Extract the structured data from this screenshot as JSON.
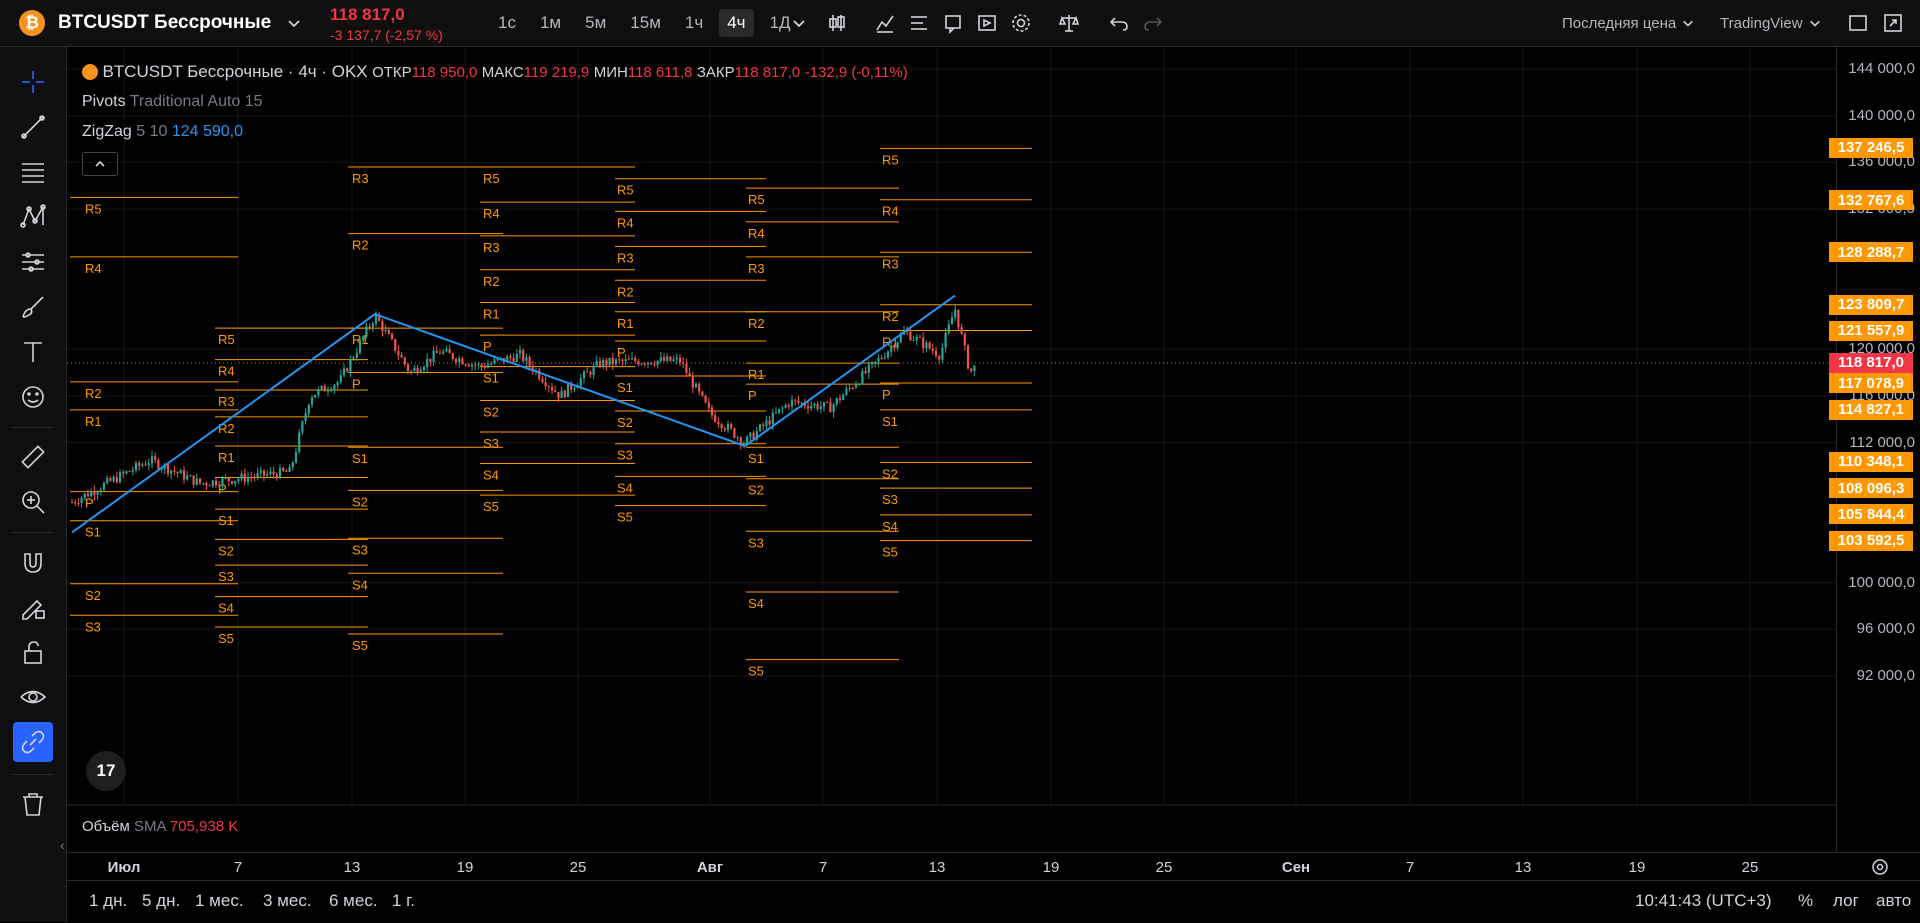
{
  "header": {
    "coin_glyph": "₿",
    "symbol_title": "BTCUSDT Бессрочные",
    "price": "118 817,0",
    "change": "-3 137,7 (-2,57 %)",
    "timeframes": [
      "1с",
      "1м",
      "5м",
      "15м",
      "1ч",
      "4ч",
      "1Д"
    ],
    "active_timeframe": "4ч",
    "price_type": "Последняя цена",
    "source": "TradingView"
  },
  "legend": {
    "title": "BTCUSDT Бессрочные · 4ч · OKX",
    "open_label": "ОТКР",
    "open": "118 950,0",
    "high_label": "МАКС",
    "high": "119 219,9",
    "low_label": "МИН",
    "low": "118 611,8",
    "close_label": "ЗАКР",
    "close": "118 817,0",
    "delta": "-132,9 (-0,11%)",
    "pivots_name": "Pivots",
    "pivots_params": "Traditional Auto 15",
    "zigzag_name": "ZigZag",
    "zigzag_params": "5 10",
    "zigzag_value": "124 590,0"
  },
  "volume": {
    "name": "Объём",
    "ma": "SMA",
    "value": "705,938 K"
  },
  "price_axis": {
    "labels": [
      "144 000,0",
      "140 000,0",
      "136 000,0",
      "132 000,0",
      "120 000,0",
      "116 000,0",
      "112 000,0",
      "100 000,0",
      "96 000,0",
      "92 000,0"
    ],
    "badges": [
      {
        "text": "137 246,5",
        "kind": "orange",
        "price": 137246.5
      },
      {
        "text": "132 767,6",
        "kind": "orange",
        "price": 132767.6
      },
      {
        "text": "128 288,7",
        "kind": "orange",
        "price": 128288.7
      },
      {
        "text": "123 809,7",
        "kind": "orange",
        "price": 123809.7
      },
      {
        "text": "121 557,9",
        "kind": "orange",
        "price": 121557.9
      },
      {
        "text": "118 817,0",
        "kind": "red",
        "price": 118817.0
      },
      {
        "text": "117 078,9",
        "kind": "orange",
        "price": 117078.9
      },
      {
        "text": "114 827,1",
        "kind": "orange",
        "price": 114827.1
      },
      {
        "text": "110 348,1",
        "kind": "orange",
        "price": 110348.1
      },
      {
        "text": "108 096,3",
        "kind": "orange",
        "price": 108096.3
      },
      {
        "text": "105 844,4",
        "kind": "orange",
        "price": 105844.4
      },
      {
        "text": "103 592,5",
        "kind": "orange",
        "price": 103592.5
      }
    ]
  },
  "time_axis": {
    "labels": [
      "Июл",
      "7",
      "13",
      "19",
      "25",
      "Авг",
      "7",
      "13",
      "19",
      "25",
      "Сен",
      "7",
      "13",
      "19",
      "25"
    ],
    "bold": [
      "Июл",
      "Авг",
      "Сен"
    ]
  },
  "bottom": {
    "ranges": [
      "1 дн.",
      "5 дн.",
      "1 мес.",
      "3 мес.",
      "6 мес.",
      "1 г."
    ],
    "clock": "10:41:43 (UTC+3)",
    "percent": "%",
    "log": "лог",
    "auto": "авто"
  },
  "pivot_labels": [
    "R5",
    "R4",
    "R3",
    "R2",
    "R1",
    "P",
    "S1",
    "S2",
    "S3",
    "S4",
    "S5"
  ],
  "colors": {
    "pivot": "#ff9800",
    "zigzag": "#2196f3",
    "up": "#26a69a",
    "down": "#ef5350",
    "accent": "#2962ff"
  },
  "tv_logo": "17"
}
